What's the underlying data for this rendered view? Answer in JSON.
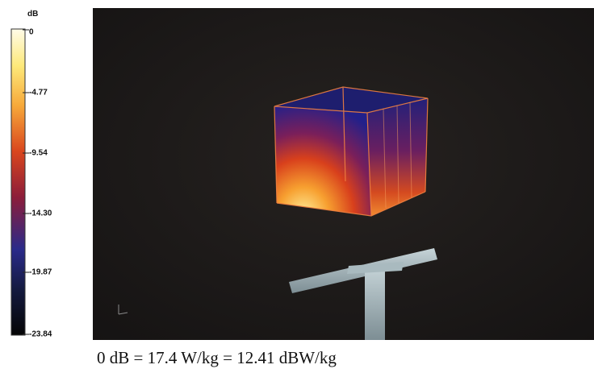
{
  "colorbar": {
    "unit": "dB",
    "labels": [
      "0",
      "-4.77",
      "-9.54",
      "-14.30",
      "-19.87",
      "-23.84"
    ]
  },
  "caption": "0 dB = 17.4 W/kg = 12.41 dBW/kg"
}
